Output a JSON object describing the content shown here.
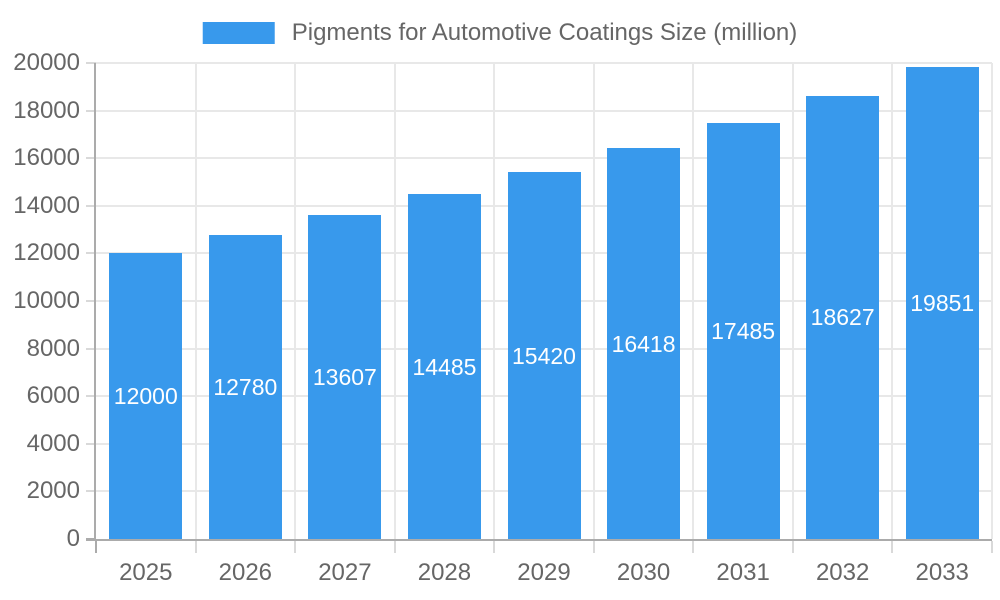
{
  "legend": {
    "label": "Pigments for Automotive Coatings Size (million)"
  },
  "chart_data": {
    "type": "bar",
    "title": "Pigments for Automotive Coatings Size (million)",
    "categories": [
      "2025",
      "2026",
      "2027",
      "2028",
      "2029",
      "2030",
      "2031",
      "2032",
      "2033"
    ],
    "series": [
      {
        "name": "Pigments for Automotive Coatings Size (million)",
        "values": [
          12000,
          12780,
          13607,
          14485,
          15420,
          16418,
          17485,
          18627,
          19851
        ]
      }
    ],
    "value_labels_position": "inside-center",
    "xlabel": "",
    "ylabel": "",
    "ylim": [
      0,
      20000
    ],
    "ytick_step": 2000,
    "yticks": [
      0,
      2000,
      4000,
      6000,
      8000,
      10000,
      12000,
      14000,
      16000,
      18000,
      20000
    ],
    "grid": true,
    "legend_position": "top-center"
  },
  "colors": {
    "bar": "#3899ec",
    "grid": "#e8e8e8",
    "axis": "#ababab",
    "tick": "#d9d9d9",
    "text": "#666666",
    "value_text": "#ffffff",
    "background": "#ffffff"
  }
}
